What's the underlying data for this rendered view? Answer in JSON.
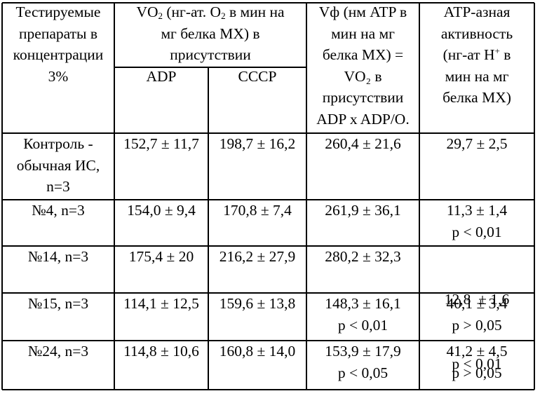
{
  "table": {
    "header": {
      "col1": [
        "Тестируемые",
        "препараты в",
        "концентрации",
        "3%"
      ],
      "vo2_group": {
        "line1_prefix": "VO",
        "line1_sub": "2",
        "line1_mid": " (нг-ат. O",
        "line1_sub2": "2",
        "line1_suffix": " в мин на",
        "line2": "мг белка МХ) в",
        "line3": "присутствии"
      },
      "adp": "ADP",
      "cccp": "CCCP",
      "vf": [
        "Vф (нм ATP в",
        "мин на мг",
        "белка МХ) =",
        "VO₂ в",
        "присутствии",
        "ADP x ADP/O."
      ],
      "atpase": {
        "line1": "АТР-азная",
        "line2": "активность",
        "line3_prefix": "(нг-ат H",
        "line3_sup": "+",
        "line3_suffix": " в",
        "line4": "мин на мг",
        "line5": "белка МХ)"
      }
    },
    "rows": [
      {
        "name": [
          "Контроль -",
          "обычная ИС,",
          "n=3"
        ],
        "adp": [
          "152,7 ± 11,7"
        ],
        "cccp": [
          "198,7 ± 16,2"
        ],
        "vf": [
          "260,4 ± 21,6"
        ],
        "atpase": [
          "29,7 ± 2,5"
        ]
      },
      {
        "name": [
          "№4, n=3"
        ],
        "adp": [
          "154,0 ± 9,4"
        ],
        "cccp": [
          "170,8 ± 7,4"
        ],
        "vf": [
          "261,9 ± 36,1"
        ],
        "atpase": [
          "11,3 ± 1,4",
          "p < 0,01"
        ]
      },
      {
        "name": [
          "№14, n=3"
        ],
        "adp": [
          "175,4 ± 20"
        ],
        "cccp": [
          "216,2 ± 27,9"
        ],
        "vf": [
          "280,2 ± 32,3"
        ],
        "atpase": [
          "12,8  ± 1,6",
          "p < 0,01"
        ]
      },
      {
        "name": [
          "№15, n=3"
        ],
        "adp": [
          "114,1 ± 12,5"
        ],
        "cccp": [
          "159,6 ± 13,8"
        ],
        "vf": [
          "148,3 ± 16,1",
          "p < 0,01"
        ],
        "atpase": [
          "40,1 ± 3,4",
          "p > 0,05"
        ]
      },
      {
        "name": [
          "№24, n=3"
        ],
        "adp": [
          "114,8 ± 10,6"
        ],
        "cccp": [
          "160,8 ± 14,0"
        ],
        "vf": [
          "153,9 ± 17,9",
          "p < 0,05"
        ],
        "atpase": [
          "41,2 ± 4,5",
          "p > 0,05"
        ]
      }
    ]
  }
}
